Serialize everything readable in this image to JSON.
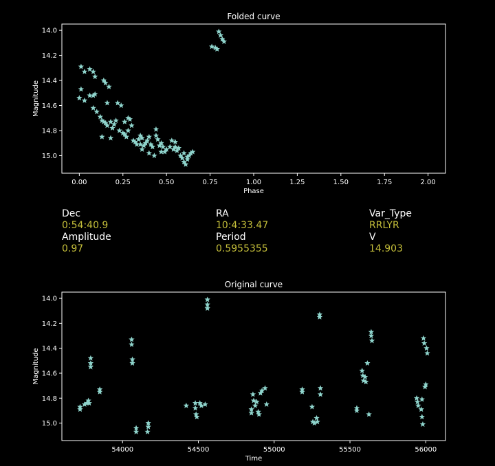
{
  "colors": {
    "background": "#000000",
    "foreground": "#ffffff",
    "points": "#8fd4cc",
    "value_text": "#c5bf3a"
  },
  "chart_data": [
    {
      "type": "scatter",
      "marker": "star",
      "title": "Folded curve",
      "xlabel": "Phase",
      "ylabel": "Magnitude",
      "xlim": [
        -0.1,
        2.1
      ],
      "ylim": [
        15.14,
        13.95
      ],
      "y_inverted": true,
      "xticks": [
        "0.00",
        "0.25",
        "0.50",
        "0.75",
        "1.00",
        "1.25",
        "1.50",
        "1.75",
        "2.00"
      ],
      "yticks": [
        "14.0",
        "14.2",
        "14.4",
        "14.6",
        "14.8",
        "15.0"
      ],
      "series": [
        {
          "points": [
            [
              0.01,
              14.29
            ],
            [
              0.03,
              14.33
            ],
            [
              0.06,
              14.31
            ],
            [
              0.08,
              14.33
            ],
            [
              0.09,
              14.37
            ],
            [
              0.01,
              14.47
            ],
            [
              0.0,
              14.54
            ],
            [
              0.03,
              14.56
            ],
            [
              0.06,
              14.52
            ],
            [
              0.08,
              14.52
            ],
            [
              0.09,
              14.51
            ],
            [
              0.08,
              14.62
            ],
            [
              0.1,
              14.65
            ],
            [
              0.12,
              14.69
            ],
            [
              0.13,
              14.72
            ],
            [
              0.14,
              14.73
            ],
            [
              0.15,
              14.74
            ],
            [
              0.16,
              14.76
            ],
            [
              0.14,
              14.4
            ],
            [
              0.15,
              14.42
            ],
            [
              0.17,
              14.45
            ],
            [
              0.16,
              14.58
            ],
            [
              0.18,
              14.73
            ],
            [
              0.2,
              14.75
            ],
            [
              0.19,
              14.78
            ],
            [
              0.21,
              14.72
            ],
            [
              0.22,
              14.58
            ],
            [
              0.24,
              14.6
            ],
            [
              0.23,
              14.8
            ],
            [
              0.25,
              14.82
            ],
            [
              0.26,
              14.83
            ],
            [
              0.27,
              14.85
            ],
            [
              0.28,
              14.8
            ],
            [
              0.29,
              14.71
            ],
            [
              0.3,
              14.76
            ],
            [
              0.31,
              14.88
            ],
            [
              0.32,
              14.89
            ],
            [
              0.33,
              14.91
            ],
            [
              0.34,
              14.87
            ],
            [
              0.35,
              14.84
            ],
            [
              0.36,
              14.86
            ],
            [
              0.37,
              14.92
            ],
            [
              0.38,
              14.9
            ],
            [
              0.39,
              14.88
            ],
            [
              0.4,
              14.85
            ],
            [
              0.41,
              14.91
            ],
            [
              0.42,
              14.93
            ],
            [
              0.44,
              14.84
            ],
            [
              0.45,
              14.87
            ],
            [
              0.46,
              14.92
            ],
            [
              0.47,
              14.9
            ],
            [
              0.48,
              14.93
            ],
            [
              0.49,
              14.97
            ],
            [
              0.5,
              14.95
            ],
            [
              0.52,
              14.93
            ],
            [
              0.54,
              14.95
            ],
            [
              0.55,
              14.93
            ],
            [
              0.56,
              14.96
            ],
            [
              0.57,
              14.94
            ],
            [
              0.58,
              15.0
            ],
            [
              0.59,
              15.02
            ],
            [
              0.6,
              15.05
            ],
            [
              0.61,
              15.07
            ],
            [
              0.62,
              15.03
            ],
            [
              0.63,
              15.0
            ],
            [
              0.64,
              14.98
            ],
            [
              0.65,
              14.97
            ],
            [
              0.47,
              14.97
            ],
            [
              0.4,
              14.98
            ],
            [
              0.43,
              15.0
            ],
            [
              0.36,
              14.95
            ],
            [
              0.18,
              14.86
            ],
            [
              0.13,
              14.85
            ],
            [
              0.76,
              14.13
            ],
            [
              0.78,
              14.14
            ],
            [
              0.79,
              14.15
            ],
            [
              0.8,
              14.01
            ],
            [
              0.81,
              14.04
            ],
            [
              0.82,
              14.07
            ],
            [
              0.83,
              14.09
            ],
            [
              0.26,
              14.73
            ],
            [
              0.28,
              14.7
            ],
            [
              0.44,
              14.79
            ],
            [
              0.53,
              14.88
            ],
            [
              0.55,
              14.89
            ],
            [
              0.6,
              14.98
            ],
            [
              0.62,
              15.01
            ],
            [
              0.35,
              14.91
            ]
          ]
        }
      ]
    },
    {
      "type": "scatter",
      "marker": "star",
      "title": "Original curve",
      "xlabel": "Time",
      "ylabel": "Magnitude",
      "xlim": [
        53600,
        56130
      ],
      "ylim": [
        15.14,
        13.95
      ],
      "y_inverted": true,
      "xticks": [
        "54000",
        "54500",
        "55000",
        "55500",
        "56000"
      ],
      "yticks": [
        "14.0",
        "14.2",
        "14.4",
        "14.6",
        "14.8",
        "15.0"
      ],
      "series": [
        {
          "points": [
            [
              53720,
              14.87
            ],
            [
              53720,
              14.89
            ],
            [
              53750,
              14.85
            ],
            [
              53765,
              14.84
            ],
            [
              53775,
              14.82
            ],
            [
              53780,
              14.84
            ],
            [
              53790,
              14.48
            ],
            [
              53790,
              14.52
            ],
            [
              53790,
              14.55
            ],
            [
              53850,
              14.73
            ],
            [
              53850,
              14.75
            ],
            [
              54060,
              14.33
            ],
            [
              54060,
              14.37
            ],
            [
              54065,
              14.49
            ],
            [
              54065,
              14.52
            ],
            [
              54090,
              15.04
            ],
            [
              54090,
              15.07
            ],
            [
              54170,
              15.0
            ],
            [
              54170,
              15.03
            ],
            [
              54165,
              15.07
            ],
            [
              54420,
              14.86
            ],
            [
              54480,
              14.84
            ],
            [
              54480,
              14.88
            ],
            [
              54485,
              14.93
            ],
            [
              54490,
              14.95
            ],
            [
              54510,
              14.84
            ],
            [
              54520,
              14.86
            ],
            [
              54545,
              14.85
            ],
            [
              54560,
              14.01
            ],
            [
              54560,
              14.05
            ],
            [
              54560,
              14.08
            ],
            [
              54850,
              14.89
            ],
            [
              54850,
              14.92
            ],
            [
              54860,
              14.77
            ],
            [
              54865,
              14.82
            ],
            [
              54875,
              14.86
            ],
            [
              54885,
              14.83
            ],
            [
              54895,
              14.91
            ],
            [
              54900,
              14.93
            ],
            [
              54910,
              14.76
            ],
            [
              54920,
              14.74
            ],
            [
              54940,
              14.72
            ],
            [
              54950,
              14.85
            ],
            [
              55185,
              14.73
            ],
            [
              55185,
              14.75
            ],
            [
              55250,
              14.87
            ],
            [
              55255,
              14.99
            ],
            [
              55265,
              15.0
            ],
            [
              55280,
              14.96
            ],
            [
              55285,
              14.99
            ],
            [
              55300,
              14.13
            ],
            [
              55300,
              14.15
            ],
            [
              55305,
              14.72
            ],
            [
              55305,
              14.77
            ],
            [
              55545,
              14.88
            ],
            [
              55545,
              14.9
            ],
            [
              55580,
              14.58
            ],
            [
              55585,
              14.62
            ],
            [
              55590,
              14.66
            ],
            [
              55600,
              14.63
            ],
            [
              55605,
              14.67
            ],
            [
              55615,
              14.52
            ],
            [
              55625,
              14.93
            ],
            [
              55640,
              14.27
            ],
            [
              55640,
              14.3
            ],
            [
              55645,
              14.34
            ],
            [
              55940,
              14.8
            ],
            [
              55945,
              14.83
            ],
            [
              55950,
              14.86
            ],
            [
              55970,
              14.89
            ],
            [
              55975,
              14.95
            ],
            [
              55980,
              15.01
            ],
            [
              55985,
              14.32
            ],
            [
              55990,
              14.36
            ],
            [
              55995,
              14.71
            ],
            [
              56000,
              14.69
            ],
            [
              56005,
              14.4
            ],
            [
              56010,
              14.44
            ],
            [
              55975,
              14.81
            ]
          ]
        }
      ]
    }
  ],
  "info": {
    "dec_label": "Dec",
    "dec_value": "0:54:40.9",
    "ra_label": "RA",
    "ra_value": "10:4:33.47",
    "var_type_label": "Var_Type",
    "var_type_value": "RRLYR",
    "amplitude_label": "Amplitude",
    "amplitude_value": "0.97",
    "period_label": "Period",
    "period_value": "0.5955355",
    "v_label": "V",
    "v_value": "14.903"
  }
}
